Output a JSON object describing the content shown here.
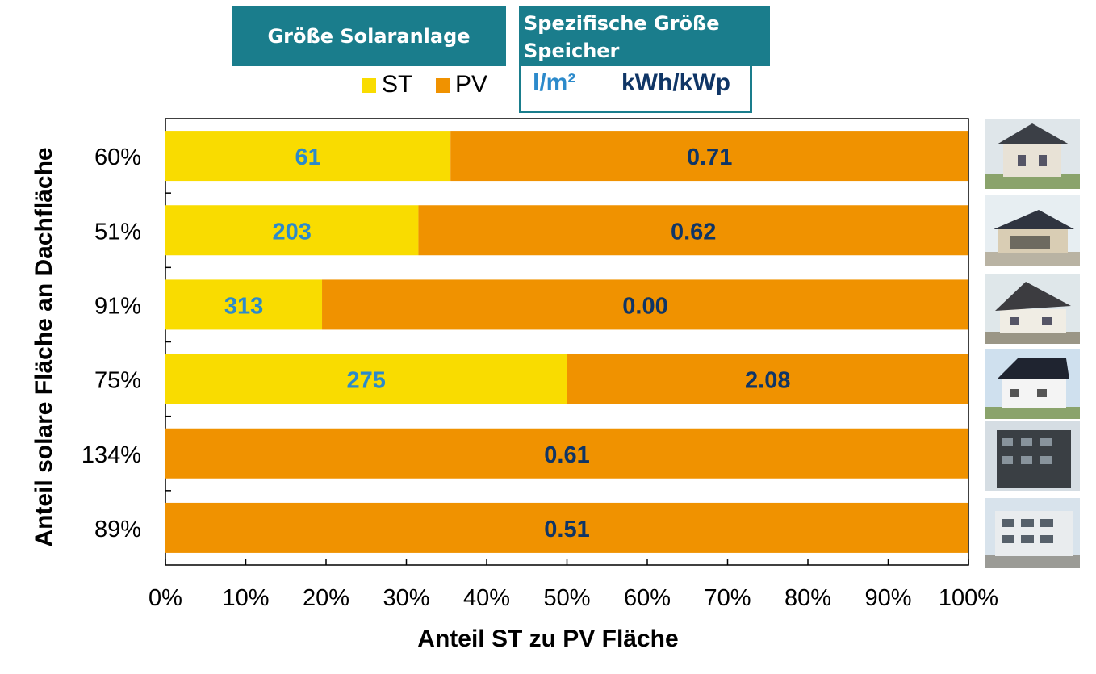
{
  "header": {
    "size_title": "Größe Solaranlage",
    "storage_title_line1": "Spezifische Größe",
    "storage_title_line2": "Speicher"
  },
  "units": {
    "st": "l/m²",
    "pv": "kWh/kWp"
  },
  "colors": {
    "st": "#f9dc00",
    "pv": "#f09200",
    "header": "#1a7d8c",
    "st_label": "#2c8acb",
    "pv_label": "#0f3566"
  },
  "chart_data": {
    "type": "bar",
    "orientation": "horizontal",
    "stacked": true,
    "xlabel": "Anteil ST zu PV Fläche",
    "ylabel": "Anteil solare  Fläche an Dachfläche",
    "categories": [
      "60%",
      "51%",
      "91%",
      "75%",
      "134%",
      "89%"
    ],
    "xlim": [
      0,
      100
    ],
    "xticks": [
      "0%",
      "10%",
      "20%",
      "30%",
      "40%",
      "50%",
      "60%",
      "70%",
      "80%",
      "90%",
      "100%"
    ],
    "series": [
      {
        "name": "ST",
        "values": [
          35.5,
          31.5,
          19.5,
          50.0,
          0,
          0
        ],
        "labels": [
          "61",
          "203",
          "313",
          "275",
          "0",
          "0"
        ]
      },
      {
        "name": "PV",
        "values": [
          64.5,
          68.5,
          80.5,
          50.0,
          100,
          100
        ],
        "labels": [
          "0.71",
          "0.62",
          "0.00",
          "2.08",
          "0.61",
          "0.51"
        ]
      }
    ],
    "legend": "top"
  },
  "photos": [
    "house-photo",
    "house-photo",
    "house-photo",
    "house-photo",
    "apartment-building-photo",
    "apartment-building-photo"
  ]
}
